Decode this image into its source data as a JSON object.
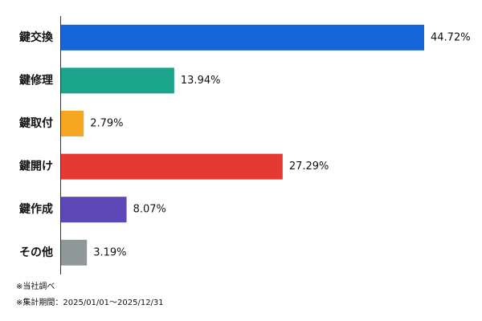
{
  "chart_data": {
    "type": "bar",
    "orientation": "horizontal",
    "categories": [
      "鍵交換",
      "鍵修理",
      "鍵取付",
      "鍵開け",
      "鍵作成",
      "その他"
    ],
    "values": [
      44.72,
      13.94,
      2.79,
      27.29,
      8.07,
      3.19
    ],
    "value_labels": [
      "44.72%",
      "13.94%",
      "2.79%",
      "27.29%",
      "8.07%",
      "3.19%"
    ],
    "colors": [
      "#1565d8",
      "#1aa58a",
      "#f5a623",
      "#e53935",
      "#5e48b8",
      "#8f9799"
    ],
    "notes": [
      "※当社調べ",
      "※集計期間：2025/01/01〜2025/12/31"
    ]
  }
}
